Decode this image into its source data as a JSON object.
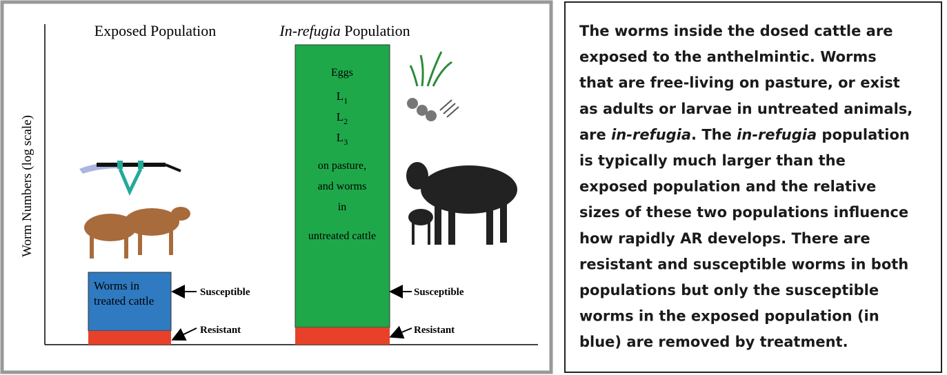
{
  "figure": {
    "y_axis_label": "Worm Numbers (log scale)",
    "exposed": {
      "heading": "Exposed Population",
      "box_lines": [
        "Worms in",
        "treated cattle"
      ],
      "susceptible": "Susceptible",
      "resistant": "Resistant"
    },
    "refugia": {
      "heading_italic": "In-refugia",
      "heading_rest": "Population",
      "box_lines": [
        "Eggs",
        {
          "text": "L",
          "sub": "1"
        },
        {
          "text": "L",
          "sub": "2"
        },
        {
          "text": "L",
          "sub": "3"
        },
        "on pasture,",
        "and worms",
        "in",
        "untreated cattle"
      ],
      "susceptible": "Susceptible",
      "resistant": "Resistant"
    }
  },
  "text_box": {
    "lines": [
      [
        "The worms inside the dosed cattle are"
      ],
      [
        "exposed to the anthelmintic. Worms"
      ],
      [
        "that are free-living on pasture, or exist"
      ],
      [
        "as adults or larvae in untreated animals,"
      ],
      [
        "are ",
        "in-refugia",
        ". The ",
        "in-refugia",
        " population"
      ],
      [
        "is typically much larger than the"
      ],
      [
        "exposed population and the relative"
      ],
      [
        "sizes of these two populations influence"
      ],
      [
        "how rapidly AR develops. There are"
      ],
      [
        "resistant and susceptible worms in both"
      ],
      [
        "populations but only the susceptible"
      ],
      [
        "worms in the exposed population (in"
      ],
      [
        "blue) are removed by treatment."
      ]
    ]
  }
}
